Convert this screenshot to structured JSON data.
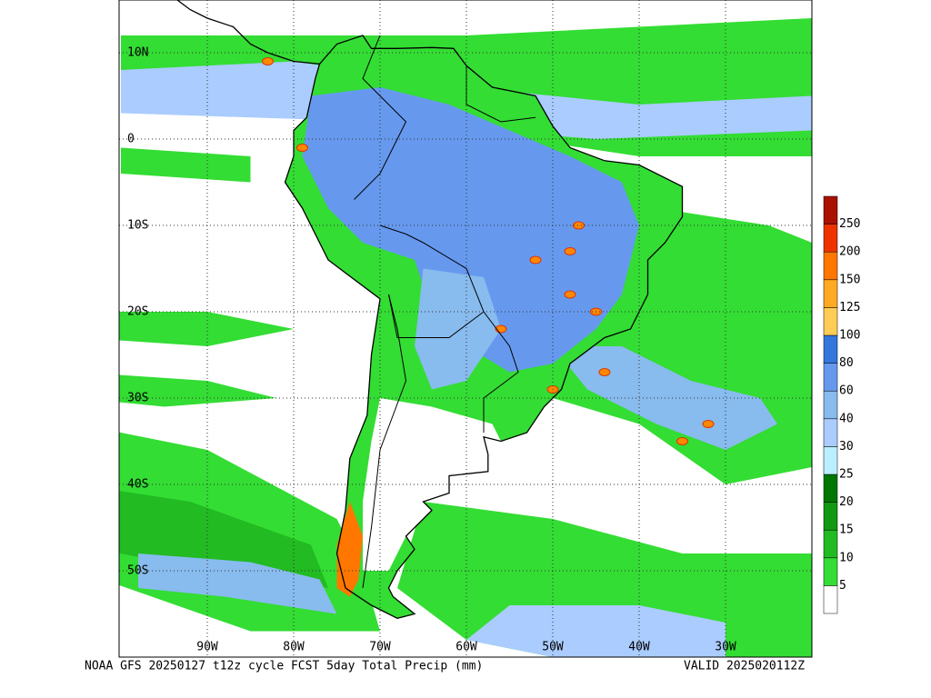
{
  "map": {
    "latitude_labels": [
      "10N",
      "0",
      "10S",
      "20S",
      "30S",
      "40S",
      "50S"
    ],
    "longitude_labels": [
      "90W",
      "80W",
      "70W",
      "60W",
      "50W",
      "40W",
      "30W"
    ],
    "caption": "NOAA GFS 20250127 t12z cycle FCST 5day Total Precip (mm)",
    "valid": "VALID 2025020112Z"
  },
  "legend": {
    "labels": [
      "5",
      "10",
      "15",
      "20",
      "25",
      "30",
      "40",
      "60",
      "80",
      "100",
      "125",
      "150",
      "200",
      "250"
    ],
    "colors": [
      "#ffffff",
      "#33dd33",
      "#22bb22",
      "#119911",
      "#007700",
      "#bbeeff",
      "#aaccff",
      "#88bbee",
      "#6699ee",
      "#3377dd",
      "#ffcc55",
      "#ffaa22",
      "#ff7700",
      "#ee3300",
      "#aa1100"
    ]
  }
}
